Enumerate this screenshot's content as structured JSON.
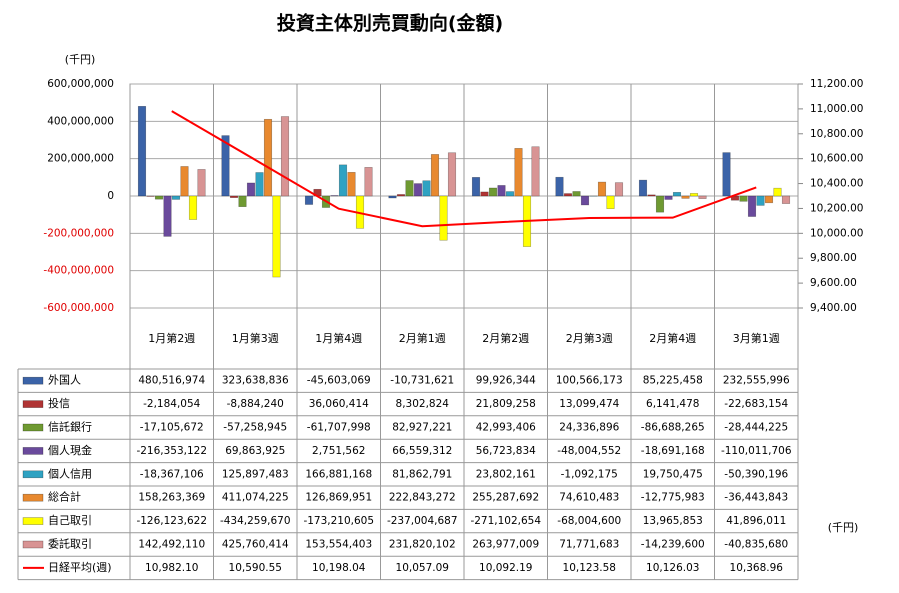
{
  "chart_data": {
    "type": "bar",
    "title": "投資主体別売買動向(金額)",
    "y_label": "(千円)",
    "table_unit": "(千円)",
    "categories": [
      "1月第2週",
      "1月第3週",
      "1月第4週",
      "2月第1週",
      "2月第2週",
      "2月第3週",
      "2月第4週",
      "3月第1週"
    ],
    "ylim": [
      -600000000,
      600000000
    ],
    "yticks": [
      {
        "value": 600000000,
        "label": "600,000,000"
      },
      {
        "value": 400000000,
        "label": "400,000,000"
      },
      {
        "value": 200000000,
        "label": "200,000,000"
      },
      0,
      {
        "value": -200000000,
        "label": "-200,000,000"
      },
      {
        "value": -400000000,
        "label": "-400,000,000"
      },
      {
        "value": -600000000,
        "label": "-600,000,000"
      }
    ],
    "y2lim": [
      9400,
      11200
    ],
    "y2ticks": [
      {
        "value": 11200,
        "label": "11,200.00"
      },
      {
        "value": 11000,
        "label": "11,000.00"
      },
      {
        "value": 10800,
        "label": "10,800.00"
      },
      {
        "value": 10600,
        "label": "10,600.00"
      },
      {
        "value": 10400,
        "label": "10,400.00"
      },
      {
        "value": 10200,
        "label": "10,200.00"
      },
      {
        "value": 10000,
        "label": "10,000.00"
      },
      {
        "value": 9800,
        "label": "9,800.00"
      },
      {
        "value": 9600,
        "label": "9,600.00"
      },
      {
        "value": 9400,
        "label": "9,400.00"
      }
    ],
    "grid": true,
    "series": [
      {
        "name": "外国人",
        "color": "#3b63a8",
        "values": [
          480516974,
          323638836,
          -45603069,
          -10731621,
          99926344,
          100566173,
          85225458,
          232555996
        ],
        "value_labels": [
          "480,516,974",
          "323,638,836",
          "-45,603,069",
          "-10,731,621",
          "99,926,344",
          "100,566,173",
          "85,225,458",
          "232,555,996"
        ]
      },
      {
        "name": "投信",
        "color": "#b03434",
        "values": [
          -2184054,
          -8884240,
          36060414,
          8302824,
          21809258,
          13099474,
          6141478,
          -22683154
        ],
        "value_labels": [
          "-2,184,054",
          "-8,884,240",
          "36,060,414",
          "8,302,824",
          "21,809,258",
          "13,099,474",
          "6,141,478",
          "-22,683,154"
        ]
      },
      {
        "name": "信託銀行",
        "color": "#6f9a32",
        "values": [
          -17105672,
          -57258945,
          -61707998,
          82927221,
          42993406,
          24336896,
          -86688265,
          -28444225
        ],
        "value_labels": [
          "-17,105,672",
          "-57,258,945",
          "-61,707,998",
          "82,927,221",
          "42,993,406",
          "24,336,896",
          "-86,688,265",
          "-28,444,225"
        ]
      },
      {
        "name": "個人現金",
        "color": "#6a4a9c",
        "values": [
          -216353122,
          69863925,
          2751562,
          66559312,
          56723834,
          -48004552,
          -18691168,
          -110011706
        ],
        "value_labels": [
          "-216,353,122",
          "69,863,925",
          "2,751,562",
          "66,559,312",
          "56,723,834",
          "-48,004,552",
          "-18,691,168",
          "-110,011,706"
        ]
      },
      {
        "name": "個人信用",
        "color": "#2fa2c2",
        "values": [
          -18367106,
          125897483,
          166881168,
          81862791,
          23802161,
          -1092175,
          19750475,
          -50390196
        ],
        "value_labels": [
          "-18,367,106",
          "125,897,483",
          "166,881,168",
          "81,862,791",
          "23,802,161",
          "-1,092,175",
          "19,750,475",
          "-50,390,196"
        ]
      },
      {
        "name": "総合計",
        "color": "#e8892f",
        "values": [
          158263369,
          411074225,
          126869951,
          222843272,
          255287692,
          74610483,
          -12775983,
          -36443843
        ],
        "value_labels": [
          "158,263,369",
          "411,074,225",
          "126,869,951",
          "222,843,272",
          "255,287,692",
          "74,610,483",
          "-12,775,983",
          "-36,443,843"
        ]
      },
      {
        "name": "自己取引",
        "color": "#ffff00",
        "values": [
          -126123622,
          -434259670,
          -173210605,
          -237004687,
          -271102654,
          -68004600,
          13965853,
          41896011
        ],
        "value_labels": [
          "-126,123,622",
          "-434,259,670",
          "-173,210,605",
          "-237,004,687",
          "-271,102,654",
          "-68,004,600",
          "13,965,853",
          "41,896,011"
        ]
      },
      {
        "name": "委託取引",
        "color": "#d89494",
        "values": [
          142492110,
          425760414,
          153554403,
          231820102,
          263977009,
          71771683,
          -14239600,
          -40835680
        ],
        "value_labels": [
          "142,492,110",
          "425,760,414",
          "153,554,403",
          "231,820,102",
          "263,977,009",
          "71,771,683",
          "-14,239,600",
          "-40,835,680"
        ]
      },
      {
        "name": "日経平均(週)",
        "color": "#ff0000",
        "type": "line",
        "axis": "y2",
        "values": [
          10982.1,
          10590.55,
          10198.04,
          10057.09,
          10092.19,
          10123.58,
          10126.03,
          10368.96
        ],
        "value_labels": [
          "10,982.10",
          "10,590.55",
          "10,198.04",
          "10,057.09",
          "10,092.19",
          "10,123.58",
          "10,126.03",
          "10,368.96"
        ]
      }
    ]
  }
}
